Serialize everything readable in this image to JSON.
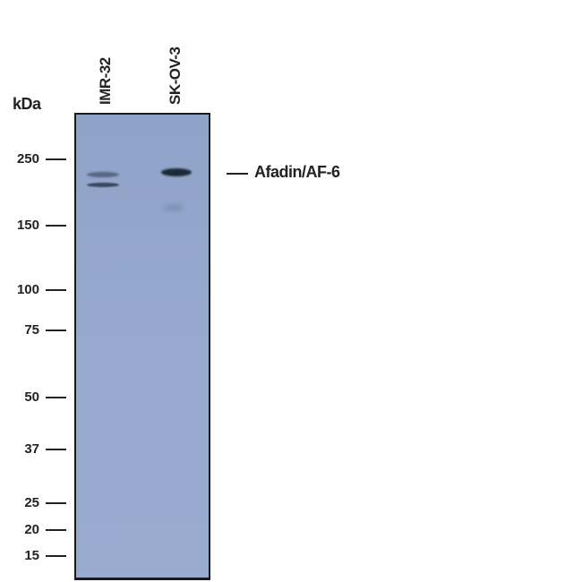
{
  "units_label": "kDa",
  "lanes": [
    {
      "label": "IMR-32"
    },
    {
      "label": "SK-OV-3"
    }
  ],
  "markers": [
    "250",
    "150",
    "100",
    "75",
    "50",
    "37",
    "25",
    "20",
    "15"
  ],
  "target_label": "Afadin/AF-6",
  "colors": {
    "membrane": "#95a7cd",
    "band": "#1c2a33",
    "text": "#222222"
  }
}
